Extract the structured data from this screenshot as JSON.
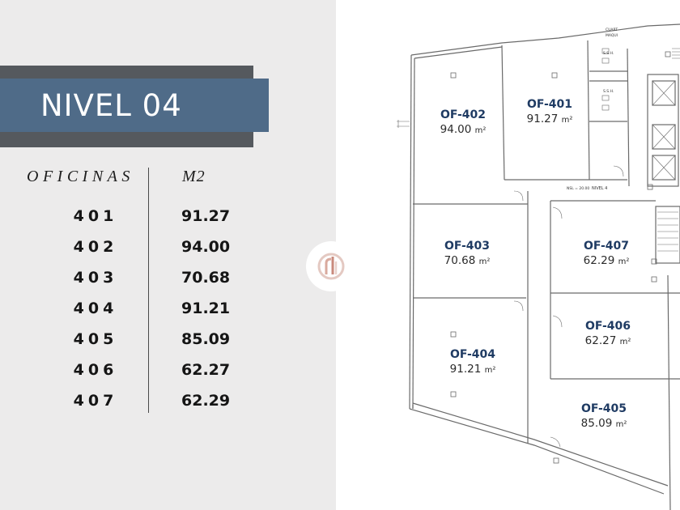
{
  "title": "NIVEL 04",
  "table": {
    "header_offices": "OFICINAS",
    "header_area": "M2",
    "rows": [
      {
        "office": "401",
        "area": "91.27"
      },
      {
        "office": "402",
        "area": "94.00"
      },
      {
        "office": "403",
        "area": "70.68"
      },
      {
        "office": "404",
        "area": "91.21"
      },
      {
        "office": "405",
        "area": "85.09"
      },
      {
        "office": "406",
        "area": "62.27"
      },
      {
        "office": "407",
        "area": "62.29"
      }
    ]
  },
  "plan": {
    "unit": "m²",
    "offices": [
      {
        "code": "OF-402",
        "area": "94.00"
      },
      {
        "code": "OF-401",
        "area": "91.27"
      },
      {
        "code": "OF-403",
        "area": "70.68"
      },
      {
        "code": "OF-407",
        "area": "62.29"
      },
      {
        "code": "OF-406",
        "area": "62.27"
      },
      {
        "code": "OF-404",
        "area": "91.21"
      },
      {
        "code": "OF-405",
        "area": "85.09"
      }
    ],
    "level_label": "NIVEL 4",
    "level_elevation": "NSL = 20.00",
    "ssh_1": "S.S.H.",
    "ssh_2": "S.S.H.",
    "room_top_1": "CUART",
    "room_top_2": "MAQUI"
  },
  "colors": {
    "band": "#4f6b88",
    "band_shadow": "#55595e",
    "office_code": "#1f3b63"
  }
}
